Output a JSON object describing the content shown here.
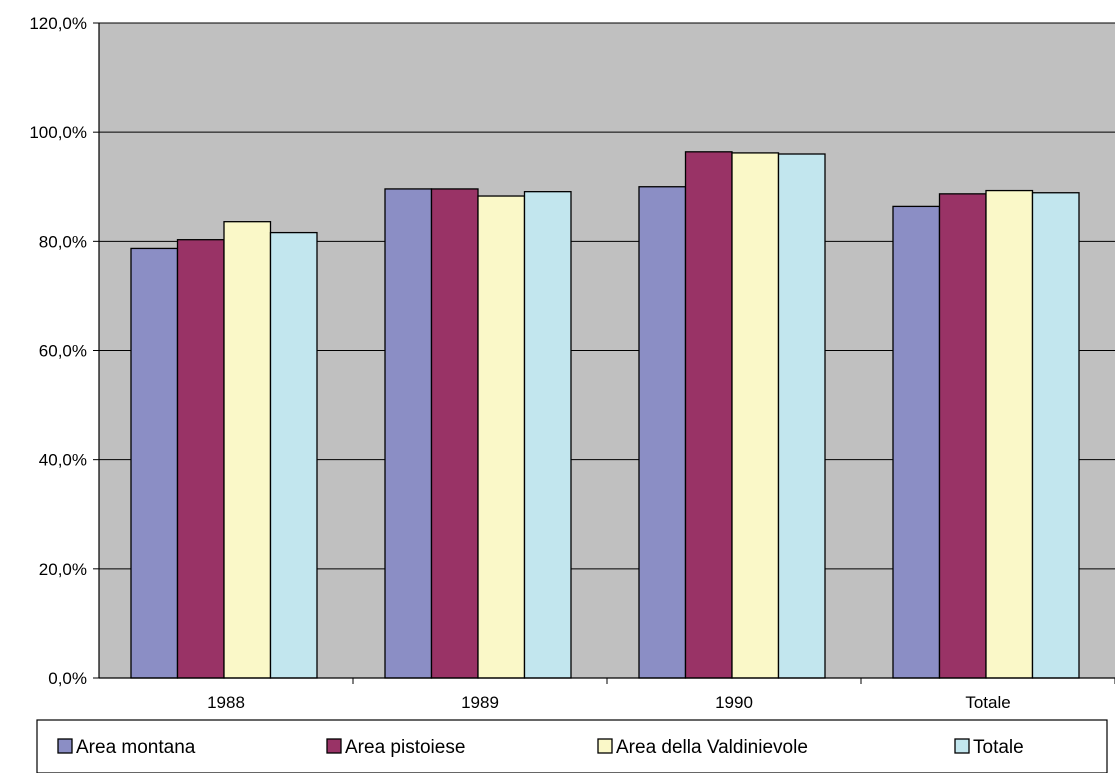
{
  "chart_data": {
    "type": "bar",
    "categories": [
      "1988",
      "1989",
      "1990",
      "Totale"
    ],
    "series": [
      {
        "name": "Area montana",
        "color": "#8B8EC5",
        "values": [
          78.7,
          89.6,
          90.0,
          86.4
        ]
      },
      {
        "name": "Area pistoiese",
        "color": "#993366",
        "values": [
          80.3,
          89.6,
          96.4,
          88.7
        ]
      },
      {
        "name": "Area della Valdinievole",
        "color": "#FAF8C8",
        "values": [
          83.6,
          88.3,
          96.2,
          89.3
        ]
      },
      {
        "name": "Totale",
        "color": "#C2E6EE",
        "values": [
          81.6,
          89.1,
          96.0,
          88.9
        ]
      }
    ],
    "y_ticks": [
      "0,0%",
      "20,0%",
      "40,0%",
      "60,0%",
      "80,0%",
      "100,0%",
      "120,0%"
    ],
    "ylim": [
      0,
      120
    ],
    "title": "",
    "xlabel": "",
    "ylabel": "",
    "grid": true,
    "legend_position": "bottom",
    "plot_background": "#C0C0C0"
  }
}
